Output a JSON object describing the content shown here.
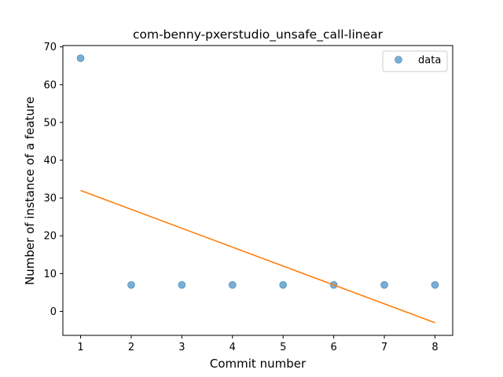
{
  "chart_data": {
    "type": "scatter",
    "title": "com-benny-pxerstudio_unsafe_call-linear",
    "xlabel": "Commit number",
    "ylabel": "Number of instance of a feature",
    "xlim": [
      0.65,
      8.35
    ],
    "ylim": [
      -6.35,
      70.35
    ],
    "xticks": [
      1,
      2,
      3,
      4,
      5,
      6,
      7,
      8
    ],
    "yticks": [
      0,
      10,
      20,
      30,
      40,
      50,
      60,
      70
    ],
    "grid": false,
    "legend_position": "top-right",
    "series": [
      {
        "name": "data",
        "kind": "scatter",
        "color": "#1f77b4",
        "x": [
          1,
          2,
          3,
          4,
          5,
          6,
          7,
          8
        ],
        "y": [
          67,
          7,
          7,
          7,
          7,
          7,
          7,
          7
        ]
      },
      {
        "kind": "line",
        "color": "#ff7f0e",
        "x": [
          1,
          8
        ],
        "y": [
          32,
          -3
        ]
      }
    ]
  }
}
